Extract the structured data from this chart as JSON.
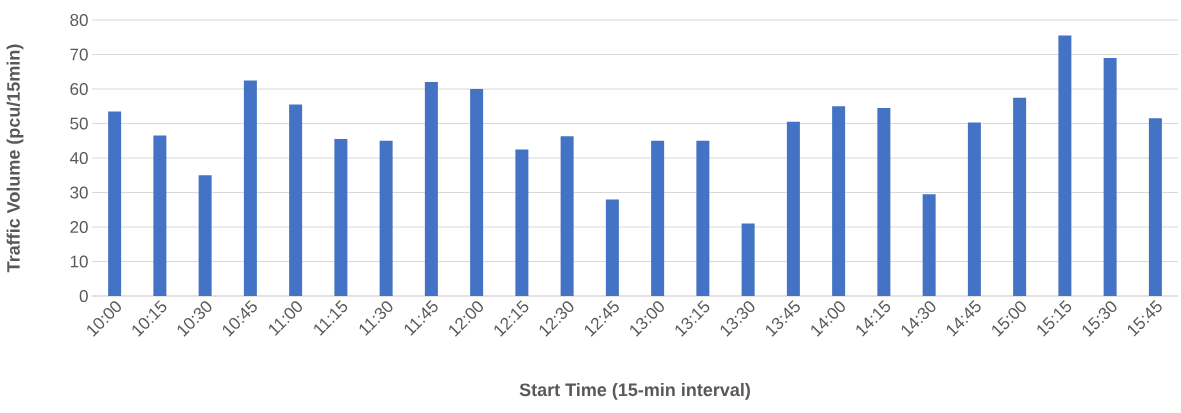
{
  "chart_data": {
    "type": "bar",
    "xlabel": "Start Time (15-min interval)",
    "ylabel": "Traffic Volume (pcu/15min)",
    "categories": [
      "10:00",
      "10:15",
      "10:30",
      "10:45",
      "11:00",
      "11:15",
      "11:30",
      "11:45",
      "12:00",
      "12:15",
      "12:30",
      "12:45",
      "13:00",
      "13:15",
      "13:30",
      "13:45",
      "14:00",
      "14:15",
      "14:30",
      "14:45",
      "15:00",
      "15:15",
      "15:30",
      "15:45"
    ],
    "values": [
      53.5,
      46.5,
      35,
      62.5,
      55.5,
      45.5,
      45,
      62,
      60,
      42.5,
      46.3,
      28,
      45,
      45,
      21,
      50.5,
      55,
      54.5,
      29.5,
      50.3,
      57.5,
      75.5,
      69,
      51.5
    ],
    "color": "#4472c4",
    "ylim": [
      0,
      80
    ],
    "yticks": [
      0,
      10,
      20,
      30,
      40,
      50,
      60,
      70,
      80
    ],
    "grid": "y"
  }
}
